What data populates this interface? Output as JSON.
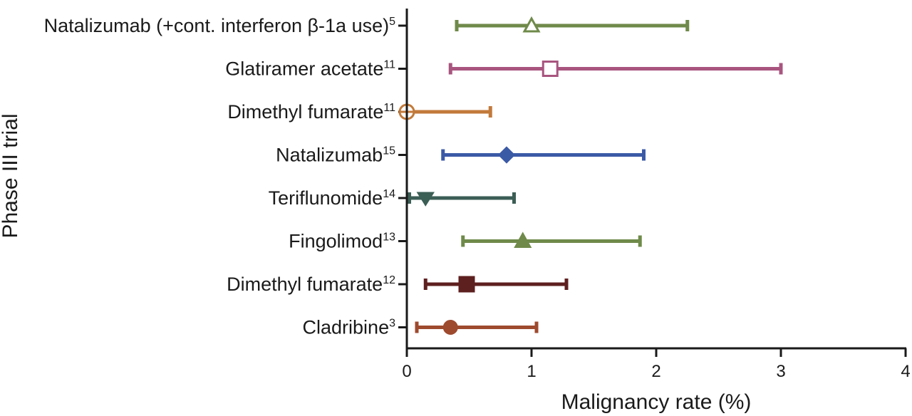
{
  "chart_data": {
    "type": "forest",
    "ylabel": "Phase III trial",
    "xlabel": "Malignancy rate (%)",
    "xlim": [
      0,
      4
    ],
    "xticks": [
      0,
      1,
      2,
      3,
      4
    ],
    "grid": false,
    "rows": [
      {
        "label": "Natalizumab (+cont. interferon β-1a use)",
        "ref": "5",
        "estimate": 1.0,
        "lower": 0.4,
        "upper": 2.25,
        "marker": "triangle-up",
        "filled": false,
        "color": "#6f8a4a"
      },
      {
        "label": "Glatiramer acetate",
        "ref": "11",
        "estimate": 1.15,
        "lower": 0.35,
        "upper": 3.0,
        "marker": "square",
        "filled": false,
        "color": "#a8557f"
      },
      {
        "label": "Dimethyl fumarate",
        "ref": "11",
        "estimate": 0.0,
        "lower": 0.0,
        "upper": 0.67,
        "marker": "circle-cross",
        "filled": false,
        "color": "#c27a3a"
      },
      {
        "label": "Natalizumab",
        "ref": "15",
        "estimate": 0.8,
        "lower": 0.29,
        "upper": 1.9,
        "marker": "diamond",
        "filled": true,
        "color": "#3b5aa6"
      },
      {
        "label": "Teriflunomide",
        "ref": "14",
        "estimate": 0.15,
        "lower": 0.02,
        "upper": 0.86,
        "marker": "triangle-down",
        "filled": true,
        "color": "#3b5e55"
      },
      {
        "label": "Fingolimod",
        "ref": "13",
        "estimate": 0.93,
        "lower": 0.45,
        "upper": 1.87,
        "marker": "triangle-up",
        "filled": true,
        "color": "#6f8a4a"
      },
      {
        "label": "Dimethyl fumarate",
        "ref": "12",
        "estimate": 0.48,
        "lower": 0.15,
        "upper": 1.28,
        "marker": "square",
        "filled": true,
        "color": "#5e1f1f"
      },
      {
        "label": "Cladribine",
        "ref": "3",
        "estimate": 0.35,
        "lower": 0.08,
        "upper": 1.04,
        "marker": "circle",
        "filled": true,
        "color": "#9e4a2e"
      }
    ]
  }
}
